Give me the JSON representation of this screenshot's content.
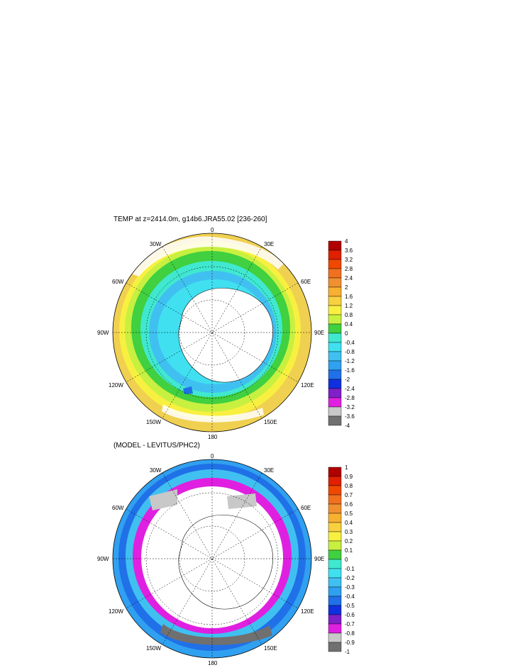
{
  "panels": [
    {
      "title": "TEMP at z=2414.0m, g14b6.JRA55.02 [236-260]",
      "colorbar": {
        "labels": [
          "4",
          "3.6",
          "3.2",
          "2.8",
          "2.4",
          "2",
          "1.6",
          "1.2",
          "0.8",
          "0.4",
          "0",
          "-0.4",
          "-0.8",
          "-1.2",
          "-1.6",
          "-2",
          "-2.4",
          "-2.8",
          "-3.2",
          "-3.6",
          "-4"
        ],
        "colors": [
          "#b00000",
          "#e02000",
          "#f04800",
          "#f07020",
          "#f09030",
          "#f8b030",
          "#f8d040",
          "#f8f040",
          "#c8f040",
          "#40d040",
          "#40e8d0",
          "#40e0f0",
          "#40c0f0",
          "#30a0f0",
          "#2070e8",
          "#1030e0",
          "#8020c8",
          "#e020e0",
          "#c8c8c8",
          "#707070"
        ]
      }
    },
    {
      "title": "(MODEL - LEVITUS/PHC2)",
      "colorbar": {
        "labels": [
          "1",
          "0.9",
          "0.8",
          "0.7",
          "0.6",
          "0.5",
          "0.4",
          "0.3",
          "0.2",
          "0.1",
          "0",
          "-0.1",
          "-0.2",
          "-0.3",
          "-0.4",
          "-0.5",
          "-0.6",
          "-0.7",
          "-0.8",
          "-0.9",
          "-1"
        ],
        "colors": [
          "#b00000",
          "#e02000",
          "#f04800",
          "#f07020",
          "#f09030",
          "#f8b030",
          "#f8d040",
          "#f8f040",
          "#c8f040",
          "#40d040",
          "#40e8d0",
          "#40e0f0",
          "#40c0f0",
          "#30a0f0",
          "#2070e8",
          "#1030e0",
          "#8020c8",
          "#e020e0",
          "#c8c8c8",
          "#707070"
        ]
      }
    }
  ],
  "axis_labels": {
    "top": "0",
    "bottom": "180",
    "left": "90W",
    "right": "90E",
    "upper_left": "30W",
    "upper_right": "30E",
    "mid_left": "60W",
    "mid_right": "60E",
    "lower_left_a": "120W",
    "lower_right_a": "120E",
    "lower_left_b": "150W",
    "lower_right_b": "150E"
  }
}
